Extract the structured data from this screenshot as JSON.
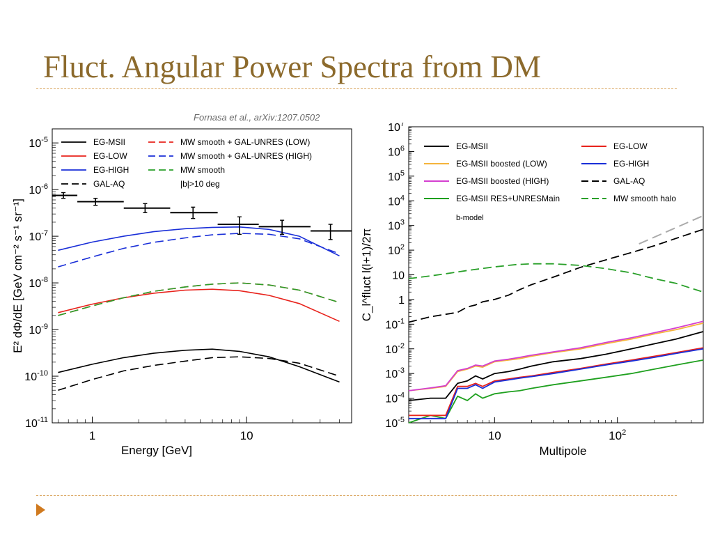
{
  "slide": {
    "title": "Fluct. Angular Power Spectra from DM",
    "citation": "Fornasa et al., arXiv:1207.0502",
    "accent": "#8c6a2c",
    "rule_color": "#d9a35a",
    "arrow_color": "#d07a1f",
    "arrow_icon": "triangle-right-icon"
  },
  "chart_data": [
    {
      "type": "line",
      "xlabel": "Energy [GeV]",
      "ylabel": "E² dΦ/dE [GeV cm⁻² s⁻¹ sr⁻¹]",
      "xscale": "log",
      "yscale": "log",
      "xlim": [
        0.55,
        48
      ],
      "ylim": [
        1e-11,
        2e-05
      ],
      "xticks": [
        {
          "value": 1,
          "label": "1"
        },
        {
          "value": 10,
          "label": "10"
        }
      ],
      "yticks": [
        {
          "value": 1e-11,
          "base": "10",
          "exp": "-11"
        },
        {
          "value": 1e-10,
          "base": "10",
          "exp": "-10"
        },
        {
          "value": 1e-09,
          "base": "10",
          "exp": "-9"
        },
        {
          "value": 1e-08,
          "base": "10",
          "exp": "-8"
        },
        {
          "value": 1e-07,
          "base": "10",
          "exp": "-7"
        },
        {
          "value": 1e-06,
          "base": "10",
          "exp": "-6"
        },
        {
          "value": 1e-05,
          "base": "10",
          "exp": "-5"
        }
      ],
      "legend_notes": [
        "|b|>10 deg"
      ],
      "series": [
        {
          "name": "EG-MSII",
          "color": "#000000",
          "dash": "solid",
          "x": [
            0.6,
            1,
            1.6,
            2.5,
            4,
            6,
            9,
            14,
            22,
            40
          ],
          "y": [
            1.2e-10,
            1.8e-10,
            2.5e-10,
            3.1e-10,
            3.6e-10,
            3.8e-10,
            3.4e-10,
            2.6e-10,
            1.6e-10,
            7.5e-11
          ]
        },
        {
          "name": "EG-LOW",
          "color": "#e8231c",
          "dash": "solid",
          "x": [
            0.6,
            1,
            1.6,
            2.5,
            4,
            6,
            9,
            14,
            22,
            40
          ],
          "y": [
            2.3e-09,
            3.5e-09,
            4.8e-09,
            6e-09,
            7e-09,
            7.3e-09,
            6.8e-09,
            5.4e-09,
            3.6e-09,
            1.5e-09
          ]
        },
        {
          "name": "EG-HIGH",
          "color": "#1a2fd8",
          "dash": "solid",
          "x": [
            0.6,
            1,
            1.6,
            2.5,
            4,
            6,
            9,
            14,
            22,
            40
          ],
          "y": [
            5e-08,
            7.5e-08,
            1e-07,
            1.25e-07,
            1.45e-07,
            1.55e-07,
            1.58e-07,
            1.4e-07,
            1e-07,
            3.8e-08
          ]
        },
        {
          "name": "GAL-AQ",
          "color": "#000000",
          "dash": "dashed",
          "x": [
            0.6,
            1,
            1.6,
            2.5,
            4,
            6,
            9,
            14,
            22,
            40
          ],
          "y": [
            5e-11,
            8.5e-11,
            1.3e-10,
            1.7e-10,
            2.1e-10,
            2.5e-10,
            2.6e-10,
            2.4e-10,
            1.9e-10,
            1e-10
          ]
        },
        {
          "name": "MW smooth + GAL-UNRES (LOW)",
          "color": "#e8231c",
          "dash": "dashed",
          "x": [
            0.6,
            1,
            1.6,
            2.5,
            4,
            6,
            9,
            14,
            22,
            40
          ],
          "y": [
            2e-09,
            3.2e-09,
            4.8e-09,
            6.6e-09,
            8.2e-09,
            9.4e-09,
            1e-08,
            9e-09,
            7e-09,
            3.8e-09
          ]
        },
        {
          "name": "MW smooth + GAL-UNRES (HIGH)",
          "color": "#1a2fd8",
          "dash": "dashed",
          "x": [
            0.6,
            1,
            1.6,
            2.5,
            4,
            6,
            9,
            14,
            22,
            40
          ],
          "y": [
            2.2e-08,
            3.6e-08,
            5.5e-08,
            7.4e-08,
            9.2e-08,
            1.07e-07,
            1.15e-07,
            1.1e-07,
            8.8e-08,
            4.2e-08
          ]
        },
        {
          "name": "MW smooth",
          "color": "#2aa02a",
          "dash": "dashed",
          "x": [
            0.6,
            1,
            1.6,
            2.5,
            4,
            6,
            9,
            14,
            22,
            40
          ],
          "y": [
            2e-09,
            3.2e-09,
            4.8e-09,
            6.6e-09,
            8.2e-09,
            9.4e-09,
            1e-08,
            9e-09,
            7e-09,
            3.8e-09
          ]
        }
      ],
      "data_points": [
        {
          "x": 0.65,
          "xerr": [
            0.55,
            0.8
          ],
          "y": 7.5e-07,
          "yerr": [
            6.5e-07,
            8.6e-07
          ]
        },
        {
          "x": 1.05,
          "xerr": [
            0.8,
            1.6
          ],
          "y": 5.5e-07,
          "yerr": [
            4.6e-07,
            6.5e-07
          ]
        },
        {
          "x": 2.2,
          "xerr": [
            1.6,
            3.2
          ],
          "y": 4e-07,
          "yerr": [
            3.2e-07,
            5e-07
          ]
        },
        {
          "x": 4.5,
          "xerr": [
            3.2,
            6.5
          ],
          "y": 3.2e-07,
          "yerr": [
            2.4e-07,
            4.2e-07
          ]
        },
        {
          "x": 9,
          "xerr": [
            6.5,
            12
          ],
          "y": 1.8e-07,
          "yerr": [
            1.1e-07,
            2.6e-07
          ]
        },
        {
          "x": 17,
          "xerr": [
            12,
            26
          ],
          "y": 1.6e-07,
          "yerr": [
            1.1e-07,
            2.2e-07
          ]
        },
        {
          "x": 35,
          "xerr": [
            26,
            48
          ],
          "y": 1.3e-07,
          "yerr": [
            8.5e-08,
            1.8e-07
          ]
        }
      ]
    },
    {
      "type": "line",
      "xlabel": "Multipole",
      "ylabel": "C_l^fluct l(l+1)/2π",
      "xscale": "log",
      "yscale": "log",
      "xlim": [
        2,
        500
      ],
      "ylim": [
        1e-05,
        10000000.0
      ],
      "xticks": [
        {
          "value": 10,
          "base": "10",
          "exp": ""
        },
        {
          "value": 100,
          "base": "10",
          "exp": "2"
        }
      ],
      "yticks": [
        {
          "value": 1e-05,
          "base": "10",
          "exp": "-5"
        },
        {
          "value": 0.0001,
          "base": "10",
          "exp": "-4"
        },
        {
          "value": 0.001,
          "base": "10",
          "exp": "-3"
        },
        {
          "value": 0.01,
          "base": "10",
          "exp": "-2"
        },
        {
          "value": 0.1,
          "base": "10",
          "exp": "-1"
        },
        {
          "value": 1,
          "base": "1",
          "exp": ""
        },
        {
          "value": 10,
          "base": "10",
          "exp": ""
        },
        {
          "value": 100,
          "base": "10",
          "exp": "2"
        },
        {
          "value": 1000,
          "base": "10",
          "exp": "3"
        },
        {
          "value": 10000.0,
          "base": "10",
          "exp": "4"
        },
        {
          "value": 100000.0,
          "base": "10",
          "exp": "5"
        },
        {
          "value": 1000000.0,
          "base": "10",
          "exp": "6"
        },
        {
          "value": 10000000.0,
          "base": "10",
          "exp": "7"
        }
      ],
      "legend_notes": [
        "b-model"
      ],
      "series": [
        {
          "name": "EG-MSII",
          "color": "#000000",
          "dash": "solid",
          "x": [
            2,
            3,
            4,
            5,
            6,
            7,
            8,
            10,
            13,
            16,
            20,
            30,
            50,
            80,
            130,
            200,
            300,
            500
          ],
          "y": [
            8e-05,
            0.0001,
            0.0001,
            0.0004,
            0.0005,
            0.0008,
            0.0006,
            0.001,
            0.0012,
            0.0015,
            0.002,
            0.003,
            0.004,
            0.006,
            0.01,
            0.016,
            0.025,
            0.05
          ]
        },
        {
          "name": "EG-MSII boosted (LOW)",
          "color": "#f5b43c",
          "dash": "solid",
          "x": [
            2,
            3,
            4,
            5,
            6,
            7,
            8,
            10,
            13,
            16,
            20,
            30,
            50,
            80,
            130,
            200,
            300,
            500
          ],
          "y": [
            0.0002,
            0.00025,
            0.0003,
            0.0012,
            0.0015,
            0.002,
            0.0018,
            0.003,
            0.0035,
            0.004,
            0.005,
            0.007,
            0.01,
            0.016,
            0.025,
            0.04,
            0.06,
            0.11
          ]
        },
        {
          "name": "EG-MSII boosted (HIGH)",
          "color": "#d43fd0",
          "dash": "solid",
          "x": [
            2,
            3,
            4,
            5,
            6,
            7,
            8,
            10,
            13,
            16,
            20,
            30,
            50,
            80,
            130,
            200,
            300,
            500
          ],
          "y": [
            0.0002,
            0.00026,
            0.00032,
            0.0013,
            0.0016,
            0.0022,
            0.002,
            0.0032,
            0.0038,
            0.0045,
            0.0055,
            0.0075,
            0.011,
            0.018,
            0.028,
            0.045,
            0.07,
            0.13
          ]
        },
        {
          "name": "EG-MSII RES+UNRESMain",
          "color": "#1fa01f",
          "dash": "solid",
          "x": [
            2,
            3,
            4,
            5,
            6,
            7,
            8,
            10,
            13,
            16,
            20,
            30,
            50,
            80,
            130,
            200,
            300,
            500
          ],
          "y": [
            1e-05,
            2e-05,
            1.5e-05,
            0.00012,
            8e-05,
            0.00015,
            0.0001,
            0.00015,
            0.00018,
            0.0002,
            0.00025,
            0.00035,
            0.0005,
            0.0007,
            0.001,
            0.0015,
            0.0022,
            0.0035
          ]
        },
        {
          "name": "EG-LOW",
          "color": "#e8231c",
          "dash": "solid",
          "x": [
            2,
            3,
            4,
            5,
            6,
            7,
            8,
            10,
            13,
            16,
            20,
            30,
            50,
            80,
            130,
            200,
            300,
            500
          ],
          "y": [
            2e-05,
            2e-05,
            2e-05,
            0.0003,
            0.0003,
            0.0004,
            0.0003,
            0.0005,
            0.0006,
            0.0007,
            0.0008,
            0.0011,
            0.0016,
            0.0024,
            0.0035,
            0.005,
            0.007,
            0.011
          ]
        },
        {
          "name": "EG-HIGH",
          "color": "#1a2fd8",
          "dash": "solid",
          "x": [
            2,
            3,
            4,
            5,
            6,
            7,
            8,
            10,
            13,
            16,
            20,
            30,
            50,
            80,
            130,
            200,
            300,
            500
          ],
          "y": [
            1.5e-05,
            1.5e-05,
            1.5e-05,
            0.00025,
            0.00025,
            0.00035,
            0.00025,
            0.00045,
            0.00055,
            0.00065,
            0.00075,
            0.001,
            0.0015,
            0.0022,
            0.0032,
            0.0045,
            0.0065,
            0.01
          ]
        },
        {
          "name": "GAL-AQ",
          "color": "#000000",
          "dash": "dashed",
          "x": [
            2,
            3,
            4,
            5,
            6,
            7,
            8,
            10,
            13,
            16,
            20,
            30,
            50,
            80,
            130,
            200,
            300,
            500
          ],
          "y": [
            0.12,
            0.2,
            0.25,
            0.3,
            0.5,
            0.6,
            0.8,
            1,
            1.5,
            2.5,
            4,
            8,
            20,
            40,
            80,
            150,
            300,
            700
          ]
        },
        {
          "name": "MW smooth halo",
          "color": "#2aa02a",
          "dash": "dashed",
          "x": [
            2,
            3,
            4,
            6,
            10,
            15,
            20,
            30,
            50,
            80,
            130,
            200,
            300,
            500
          ],
          "y": [
            7,
            9,
            11,
            15,
            21,
            26,
            28,
            28,
            24,
            18,
            12,
            7,
            4.5,
            2
          ]
        }
      ]
    }
  ]
}
